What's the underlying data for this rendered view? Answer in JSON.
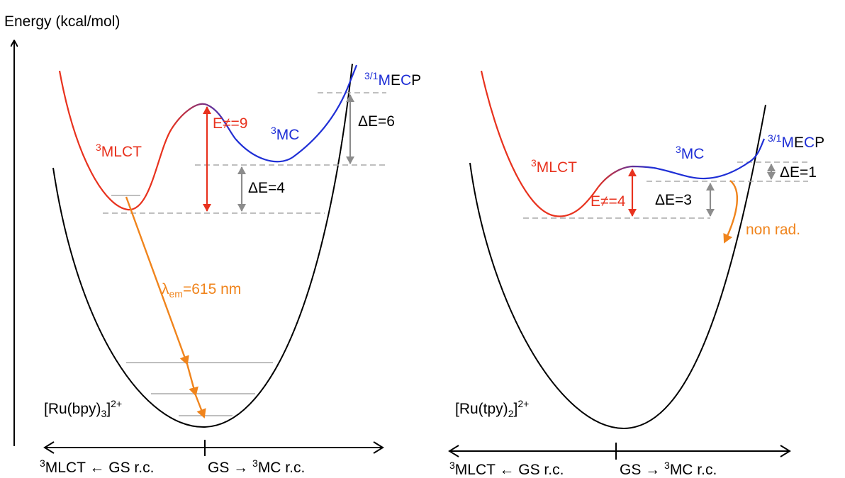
{
  "y_axis_label": "Energy (kcal/mol)",
  "colors": {
    "mlct": "#e8321e",
    "mc": "#1f2fd6",
    "emission": "#f0841c",
    "delta": "#8c8c8c",
    "ground_state": "#000000"
  },
  "left_panel": {
    "complex_base": "[Ru(bpy)",
    "complex_sub": "3",
    "complex_close": "]",
    "complex_sup": "2+",
    "mlct_sup": "3",
    "mlct_label": "MLCT",
    "mc_sup": "3",
    "mc_label": "MC",
    "mecp_sup": "3/1",
    "mecp_m": "M",
    "mecp_e": "E",
    "mecp_c": "C",
    "mecp_p": "P",
    "barrier_label": "E≠=9",
    "delta_mc": "ΔE=4",
    "delta_mecp": "ΔE=6",
    "emission_lambda": "λ",
    "emission_sub": "em",
    "emission_value": "=615 nm",
    "axis_left_sup": "3",
    "axis_left": "MLCT ← GS r.c.",
    "axis_right": "GS → ",
    "axis_right_sup": "3",
    "axis_right_end": "MC r.c."
  },
  "right_panel": {
    "complex_base": "[Ru(tpy)",
    "complex_sub": "2",
    "complex_close": "]",
    "complex_sup": "2+",
    "mlct_sup": "3",
    "mlct_label": "MLCT",
    "mc_sup": "3",
    "mc_label": "MC",
    "mecp_sup": "3/1",
    "mecp_m": "M",
    "mecp_e": "E",
    "mecp_c": "C",
    "mecp_p": "P",
    "barrier_label": "E≠=4",
    "delta_mc": "ΔE=3",
    "delta_mecp": "ΔE=1",
    "nonrad_label": "non rad.",
    "axis_left_sup": "3",
    "axis_left": "MLCT ← GS r.c.",
    "axis_right": "GS → ",
    "axis_right_sup": "3",
    "axis_right_end": "MC r.c."
  }
}
